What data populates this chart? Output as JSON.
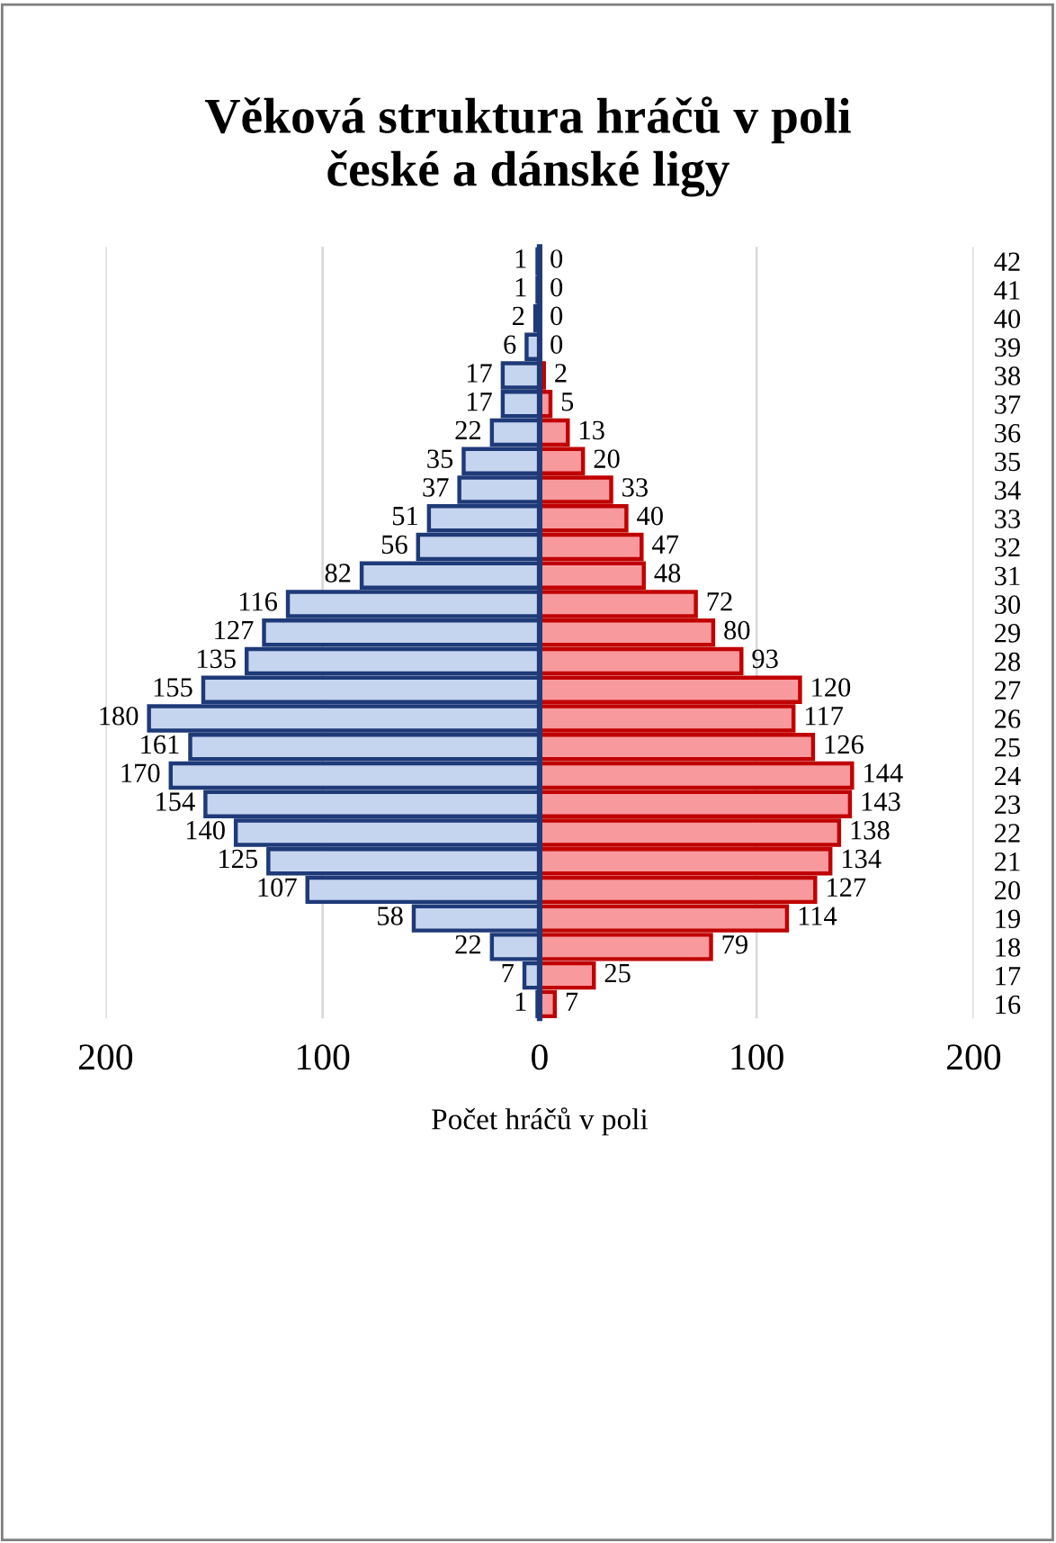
{
  "chart_data": {
    "type": "bar",
    "orientation": "horizontal",
    "title": "Věková struktura hráčů v poli\nčeské a dánské ligy",
    "xlabel": "Počet hráčů v poli",
    "data_labels": true,
    "categories": [
      "42",
      "41",
      "40",
      "39",
      "38",
      "37",
      "36",
      "35",
      "34",
      "33",
      "32",
      "31",
      "30",
      "29",
      "28",
      "27",
      "26",
      "25",
      "24",
      "23",
      "22",
      "21",
      "20",
      "19",
      "18",
      "17",
      "16"
    ],
    "series": [
      {
        "color": "#c6d5ef",
        "values": [
          1,
          1,
          2,
          6,
          17,
          17,
          22,
          35,
          37,
          51,
          56,
          82,
          116,
          127,
          135,
          155,
          180,
          161,
          170,
          154,
          140,
          125,
          107,
          58,
          22,
          7,
          1
        ],
        "base": [
          -1,
          -1,
          -2,
          -6,
          -17,
          -17,
          -22,
          -35,
          -37,
          -51,
          -56,
          -82,
          -116,
          -127,
          -135,
          -155,
          -180,
          -161,
          -170,
          -154,
          -140,
          -125,
          -107,
          -58,
          -22,
          -7,
          -1
        ]
      },
      {
        "color": "#f7999d",
        "values": [
          0,
          0,
          0,
          0,
          2,
          5,
          13,
          20,
          33,
          40,
          47,
          48,
          72,
          80,
          93,
          120,
          117,
          126,
          144,
          143,
          138,
          134,
          127,
          114,
          79,
          25,
          7
        ]
      }
    ],
    "xlim": [
      -200,
      200
    ],
    "xticks": [
      {
        "value": -200,
        "label": "200"
      },
      {
        "value": -100,
        "label": "100"
      },
      0,
      100,
      200
    ],
    "grid": "x"
  }
}
